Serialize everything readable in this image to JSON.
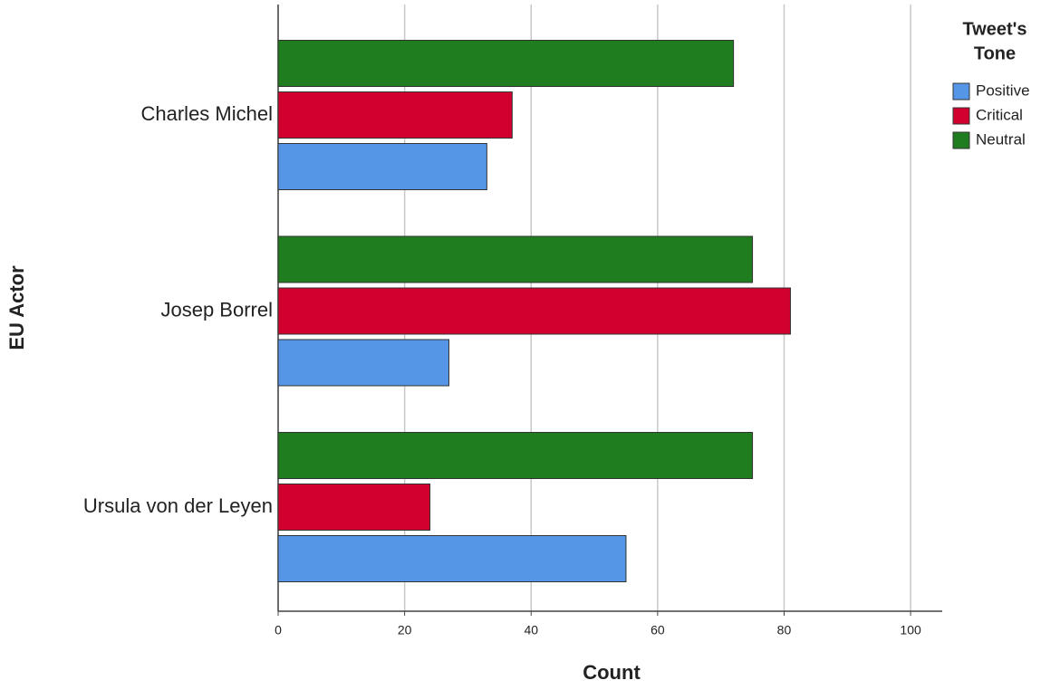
{
  "chart_data": {
    "type": "barh",
    "xlabel": "Count",
    "ylabel": "EU Actor",
    "categories": [
      "Charles Michel",
      "Josep Borrel",
      "Ursula von der Leyen"
    ],
    "legend_title": [
      "Tweet's",
      "Tone"
    ],
    "series": [
      {
        "name": "Positive",
        "color": "#5596e6",
        "values": [
          33,
          27,
          55
        ]
      },
      {
        "name": "Critical",
        "color": "#d2002e",
        "values": [
          37,
          81,
          24
        ]
      },
      {
        "name": "Neutral",
        "color": "#1f7d1f",
        "values": [
          72,
          75,
          75
        ]
      }
    ],
    "xlim": [
      0,
      105
    ],
    "xticks": [
      0,
      20,
      40,
      60,
      80,
      100
    ],
    "grid": true,
    "legend": "upper right"
  }
}
